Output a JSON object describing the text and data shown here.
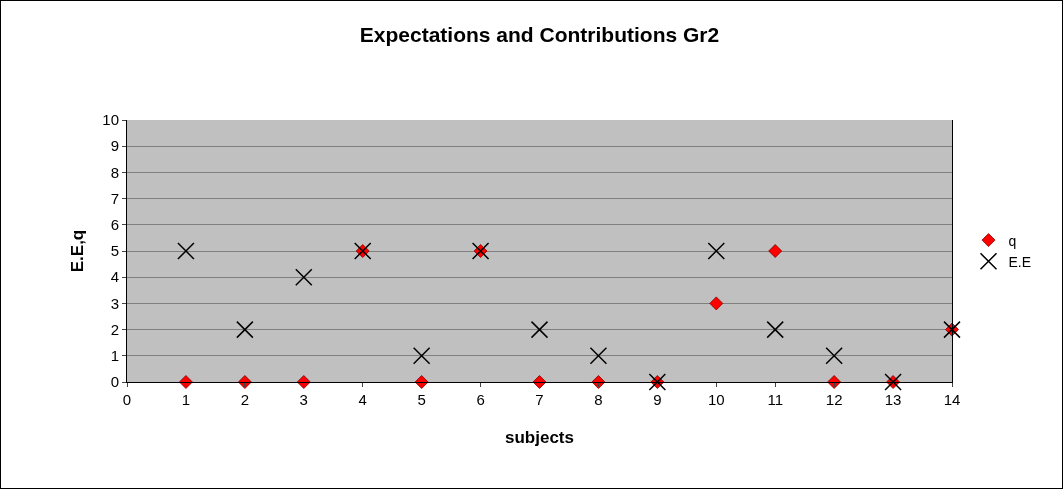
{
  "chart_data": {
    "type": "scatter",
    "title": "Expectations and Contributions Gr2",
    "xlabel": "subjects",
    "ylabel": "E.E,q",
    "x": [
      1,
      2,
      3,
      4,
      5,
      6,
      7,
      8,
      9,
      10,
      11,
      12,
      13,
      14
    ],
    "series": [
      {
        "name": "q",
        "color": "#ff0000",
        "marker": "diamond",
        "values": [
          0,
          0,
          0,
          5,
          0,
          5,
          0,
          0,
          0,
          3,
          5,
          0,
          0,
          2
        ]
      },
      {
        "name": "E.E",
        "color": "#000000",
        "marker": "cross",
        "values": [
          5,
          2,
          4,
          5,
          1,
          5,
          2,
          1,
          0,
          5,
          2,
          1,
          0,
          2
        ]
      }
    ],
    "xlim": [
      0,
      14
    ],
    "xticks": [
      0,
      1,
      2,
      3,
      4,
      5,
      6,
      7,
      8,
      9,
      10,
      11,
      12,
      13,
      14
    ],
    "ylim": [
      0,
      10
    ],
    "yticks": [
      0,
      1,
      2,
      3,
      4,
      5,
      6,
      7,
      8,
      9,
      10
    ],
    "grid": "y",
    "legend": "right"
  }
}
